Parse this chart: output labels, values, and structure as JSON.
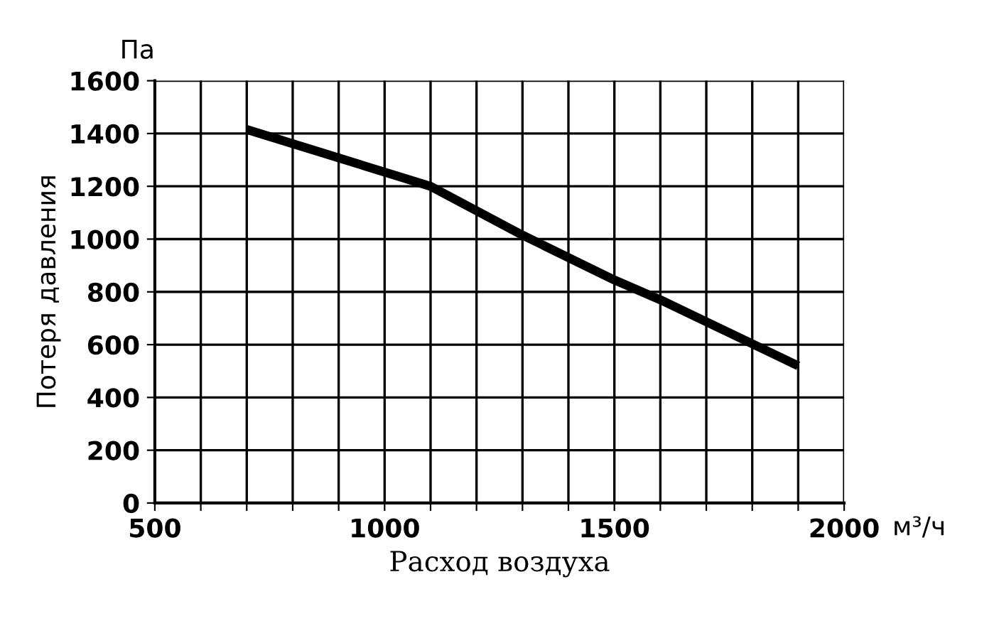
{
  "chart_data": {
    "type": "line",
    "xlabel": "Расход воздуха",
    "ylabel": "Потеря давления",
    "annotations": [
      "Па",
      "м³/ч"
    ],
    "x": [
      700,
      1100,
      1300,
      1500,
      1600,
      1900
    ],
    "series": [
      {
        "color": "#000000",
        "values": [
          1415,
          1200,
          1015,
          845,
          770,
          520
        ]
      }
    ],
    "xlim": [
      500,
      2000
    ],
    "ylim": [
      0,
      1600
    ],
    "xticks": [
      500,
      {
        "value": 600,
        "label": null
      },
      {
        "value": 700,
        "label": null
      },
      {
        "value": 800,
        "label": null
      },
      {
        "value": 900,
        "label": null
      },
      1000,
      {
        "value": 1100,
        "label": null
      },
      {
        "value": 1200,
        "label": null
      },
      {
        "value": 1300,
        "label": null
      },
      {
        "value": 1400,
        "label": null
      },
      1500,
      {
        "value": 1600,
        "label": null
      },
      {
        "value": 1700,
        "label": null
      },
      {
        "value": 1800,
        "label": null
      },
      {
        "value": 1900,
        "label": null
      },
      2000
    ],
    "yticks": [
      0,
      200,
      400,
      600,
      800,
      1000,
      1200,
      1400,
      1600
    ],
    "grid": true,
    "marker": "none",
    "line_style": "solid"
  }
}
